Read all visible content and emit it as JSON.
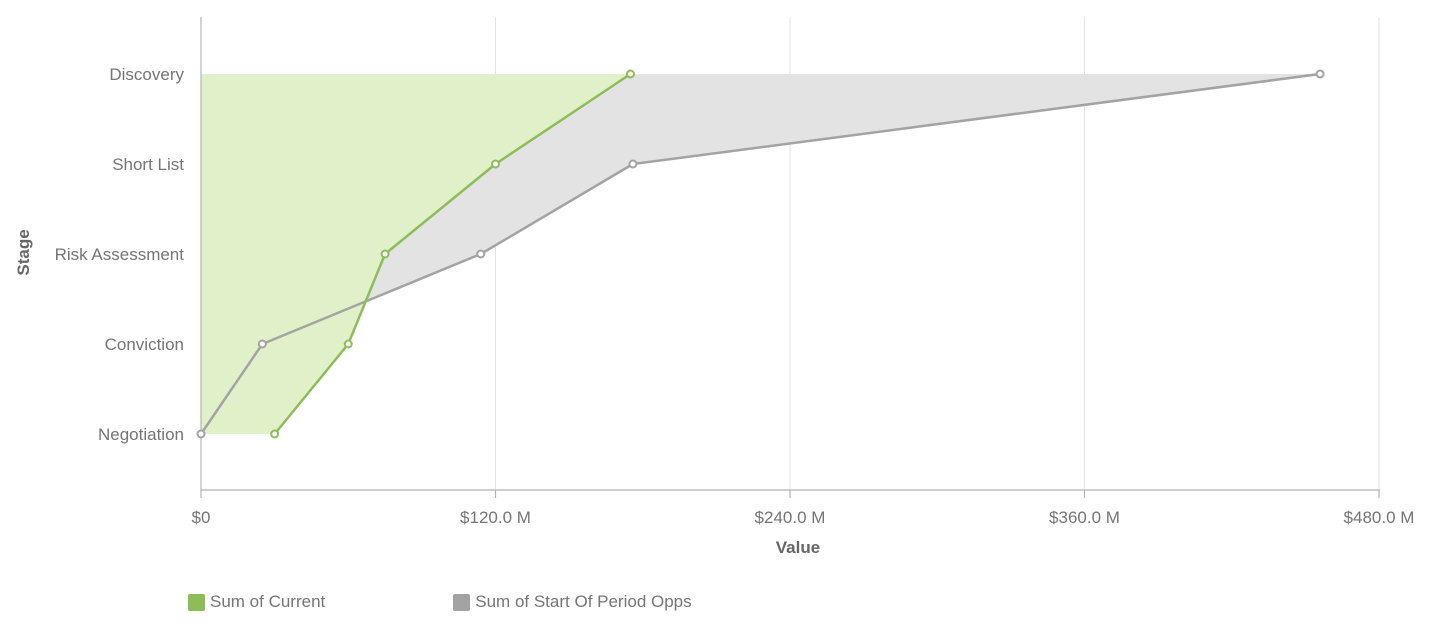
{
  "chart_data": {
    "type": "area",
    "orientation": "horizontal",
    "categories": [
      "Discovery",
      "Short List",
      "Risk Assessment",
      "Conviction",
      "Negotiation"
    ],
    "series": [
      {
        "name": "Sum of Current",
        "color": "#8cbd57",
        "fill_color": "#e0f1c9",
        "values": [
          175,
          120,
          75,
          60,
          30
        ]
      },
      {
        "name": "Sum of Start Of Period Opps",
        "color": "#a3a3a3",
        "fill_color": "#e3e3e3",
        "values": [
          456,
          176,
          114,
          25,
          0
        ]
      }
    ],
    "xlabel": "Value",
    "ylabel": "Stage",
    "xlim": [
      0,
      480
    ],
    "x_ticks": [
      0,
      120,
      240,
      360,
      480
    ],
    "x_tick_labels": [
      "$0",
      "$120.0 M",
      "$240.0 M",
      "$360.0 M",
      "$480.0 M"
    ],
    "unit": "M",
    "grid": true,
    "legend_position": "bottom-left"
  }
}
